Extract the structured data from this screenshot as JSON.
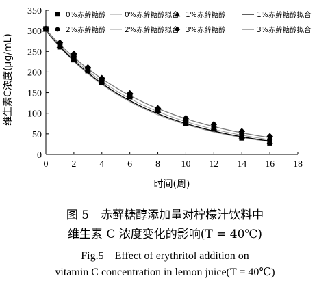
{
  "chart_data": {
    "type": "scatter",
    "xlabel": "时间(周)",
    "ylabel": "维生素C浓度(μg/mL)",
    "xlim": [
      0,
      18
    ],
    "ylim": [
      0,
      350
    ],
    "xticks": [
      "0",
      "2",
      "4",
      "6",
      "8",
      "10",
      "12",
      "14",
      "16",
      "18"
    ],
    "yticks": [
      "0",
      "50",
      "100",
      "150",
      "200",
      "250",
      "300",
      "350"
    ],
    "grid": false,
    "legend_placement": "top",
    "series": [
      {
        "name": "0%赤藓糖醇",
        "marker": "square",
        "fit_name": "0%赤藓糖醇拟合",
        "fit_style": "gray-thin",
        "x": [
          0,
          1,
          2,
          3,
          4,
          6,
          8,
          10,
          12,
          14,
          16
        ],
        "values": [
          305,
          261,
          230,
          203,
          175,
          140,
          107,
          75,
          62,
          40,
          28
        ],
        "fit": {
          "a": 300,
          "k": 0.142
        }
      },
      {
        "name": "1%赤藓糖醇",
        "marker": "triangle",
        "fit_name": "1%赤藓糖醇拟合",
        "fit_style": "black",
        "x": [
          0,
          1,
          2,
          3,
          4,
          6,
          8,
          10,
          12,
          14,
          16
        ],
        "values": [
          304,
          265,
          232,
          206,
          178,
          143,
          108,
          79,
          65,
          45,
          32
        ],
        "fit": {
          "a": 301,
          "k": 0.139
        }
      },
      {
        "name": "2%赤藓糖醇",
        "marker": "circle",
        "fit_name": "2%赤藓糖醇拟合",
        "fit_style": "gray-thin",
        "x": [
          0,
          1,
          2,
          3,
          4,
          6,
          8,
          10,
          12,
          14,
          16
        ],
        "values": [
          305,
          268,
          238,
          208,
          182,
          145,
          110,
          82,
          68,
          50,
          36
        ],
        "fit": {
          "a": 302,
          "k": 0.133
        }
      },
      {
        "name": "3%赤藓糖醇",
        "marker": "diamond",
        "fit_name": "3%赤藓糖醇拟合",
        "fit_style": "gray",
        "x": [
          0,
          1,
          2,
          3,
          4,
          6,
          8,
          10,
          12,
          14,
          16
        ],
        "values": [
          305,
          271,
          244,
          211,
          185,
          148,
          112,
          88,
          73,
          56,
          44
        ],
        "fit": {
          "a": 303,
          "k": 0.125
        }
      }
    ]
  },
  "caption": {
    "cn_line1": "图 5　赤藓糖醇添加量对柠檬汁饮料中",
    "cn_line2": "维生素 C 浓度变化的影响(T = 40℃)",
    "en_line1": "Fig.5　Effect of erythritol addition on",
    "en_line2": "vitamin C concentration in lemon juice(T = 40℃)"
  }
}
